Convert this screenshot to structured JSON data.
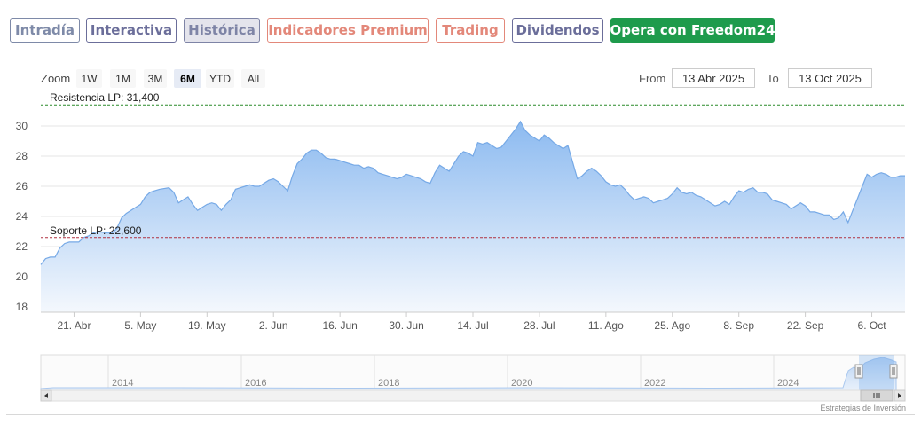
{
  "tabs": [
    {
      "label": "Intradía",
      "color": "#7e8aa8"
    },
    {
      "label": "Interactiva",
      "color": "#6b6e9a"
    },
    {
      "label": "Histórica",
      "color": "#7e84a6",
      "active": true
    },
    {
      "label": "Indicadores Premium",
      "color": "#e3887a"
    },
    {
      "label": "Trading",
      "color": "#e3887a"
    },
    {
      "label": "Dividendos",
      "color": "#6b6e9a"
    },
    {
      "label": "Opera con Freedom24",
      "color": "#1e9b4c",
      "cta": true
    }
  ],
  "range_selector": {
    "zoom_label": "Zoom",
    "buttons": [
      "1W",
      "1M",
      "3M",
      "6M",
      "YTD",
      "All"
    ],
    "active": "6M",
    "from_label": "From",
    "from_value": "13 Abr 2025",
    "to_label": "To",
    "to_value": "13 Oct 2025"
  },
  "chart_data": {
    "type": "area",
    "title": "",
    "xlabel": "",
    "ylabel": "",
    "ylim": [
      18,
      31.5
    ],
    "yticks": [
      18,
      20,
      22,
      24,
      26,
      28,
      30
    ],
    "grid": true,
    "x_start": "2025-04-14",
    "x_end": "2025-10-13",
    "xticks": [
      {
        "label": "21. Abr",
        "date": "2025-04-21"
      },
      {
        "label": "5. May",
        "date": "2025-05-05"
      },
      {
        "label": "19. May",
        "date": "2025-05-19"
      },
      {
        "label": "2. Jun",
        "date": "2025-06-02"
      },
      {
        "label": "16. Jun",
        "date": "2025-06-16"
      },
      {
        "label": "30. Jun",
        "date": "2025-06-30"
      },
      {
        "label": "14. Jul",
        "date": "2025-07-14"
      },
      {
        "label": "28. Jul",
        "date": "2025-07-28"
      },
      {
        "label": "11. Ago",
        "date": "2025-08-11"
      },
      {
        "label": "25. Ago",
        "date": "2025-08-25"
      },
      {
        "label": "8. Sep",
        "date": "2025-09-08"
      },
      {
        "label": "22. Sep",
        "date": "2025-09-22"
      },
      {
        "label": "6. Oct",
        "date": "2025-10-06"
      }
    ],
    "series": [
      {
        "values": [
          [
            "2025-04-14",
            20.8
          ],
          [
            "2025-04-15",
            21.2
          ],
          [
            "2025-04-16",
            21.3
          ],
          [
            "2025-04-17",
            21.3
          ],
          [
            "2025-04-18",
            21.9
          ],
          [
            "2025-04-19",
            22.2
          ],
          [
            "2025-04-20",
            22.3
          ],
          [
            "2025-04-21",
            22.3
          ],
          [
            "2025-04-22",
            22.3
          ],
          [
            "2025-04-23",
            22.6
          ],
          [
            "2025-04-24",
            22.7
          ],
          [
            "2025-04-25",
            22.9
          ],
          [
            "2025-04-26",
            23.0
          ],
          [
            "2025-04-28",
            22.9
          ],
          [
            "2025-04-29",
            22.9
          ],
          [
            "2025-04-30",
            23.2
          ],
          [
            "2025-05-01",
            23.9
          ],
          [
            "2025-05-02",
            24.2
          ],
          [
            "2025-05-04",
            24.6
          ],
          [
            "2025-05-05",
            24.8
          ],
          [
            "2025-05-06",
            25.3
          ],
          [
            "2025-05-07",
            25.6
          ],
          [
            "2025-05-08",
            25.7
          ],
          [
            "2025-05-09",
            25.8
          ],
          [
            "2025-05-11",
            25.9
          ],
          [
            "2025-05-12",
            25.6
          ],
          [
            "2025-05-13",
            24.9
          ],
          [
            "2025-05-14",
            25.1
          ],
          [
            "2025-05-15",
            25.3
          ],
          [
            "2025-05-16",
            24.8
          ],
          [
            "2025-05-17",
            24.4
          ],
          [
            "2025-05-18",
            24.6
          ],
          [
            "2025-05-19",
            24.8
          ],
          [
            "2025-05-20",
            24.9
          ],
          [
            "2025-05-21",
            24.8
          ],
          [
            "2025-05-22",
            24.4
          ],
          [
            "2025-05-23",
            24.8
          ],
          [
            "2025-05-24",
            25.1
          ],
          [
            "2025-05-25",
            25.8
          ],
          [
            "2025-05-26",
            25.9
          ],
          [
            "2025-05-27",
            26.0
          ],
          [
            "2025-05-28",
            26.1
          ],
          [
            "2025-05-29",
            26.0
          ],
          [
            "2025-05-30",
            26.0
          ],
          [
            "2025-06-01",
            26.4
          ],
          [
            "2025-06-02",
            26.5
          ],
          [
            "2025-06-03",
            26.3
          ],
          [
            "2025-06-04",
            26.0
          ],
          [
            "2025-06-05",
            25.7
          ],
          [
            "2025-06-06",
            26.7
          ],
          [
            "2025-06-07",
            27.5
          ],
          [
            "2025-06-08",
            27.8
          ],
          [
            "2025-06-09",
            28.2
          ],
          [
            "2025-06-10",
            28.4
          ],
          [
            "2025-06-11",
            28.4
          ],
          [
            "2025-06-12",
            28.2
          ],
          [
            "2025-06-13",
            27.9
          ],
          [
            "2025-06-14",
            27.8
          ],
          [
            "2025-06-15",
            27.8
          ],
          [
            "2025-06-16",
            27.7
          ],
          [
            "2025-06-17",
            27.6
          ],
          [
            "2025-06-18",
            27.5
          ],
          [
            "2025-06-19",
            27.4
          ],
          [
            "2025-06-20",
            27.4
          ],
          [
            "2025-06-21",
            27.2
          ],
          [
            "2025-06-22",
            27.3
          ],
          [
            "2025-06-23",
            27.2
          ],
          [
            "2025-06-24",
            26.9
          ],
          [
            "2025-06-25",
            26.8
          ],
          [
            "2025-06-26",
            26.7
          ],
          [
            "2025-06-27",
            26.6
          ],
          [
            "2025-06-28",
            26.5
          ],
          [
            "2025-06-29",
            26.6
          ],
          [
            "2025-06-30",
            26.8
          ],
          [
            "2025-07-01",
            26.7
          ],
          [
            "2025-07-02",
            26.6
          ],
          [
            "2025-07-03",
            26.5
          ],
          [
            "2025-07-04",
            26.3
          ],
          [
            "2025-07-05",
            26.2
          ],
          [
            "2025-07-06",
            26.9
          ],
          [
            "2025-07-07",
            27.4
          ],
          [
            "2025-07-08",
            27.2
          ],
          [
            "2025-07-09",
            27.0
          ],
          [
            "2025-07-10",
            27.5
          ],
          [
            "2025-07-11",
            28.0
          ],
          [
            "2025-07-12",
            28.3
          ],
          [
            "2025-07-13",
            28.2
          ],
          [
            "2025-07-14",
            28.0
          ],
          [
            "2025-07-15",
            28.9
          ],
          [
            "2025-07-16",
            28.8
          ],
          [
            "2025-07-17",
            28.9
          ],
          [
            "2025-07-18",
            28.7
          ],
          [
            "2025-07-19",
            28.5
          ],
          [
            "2025-07-20",
            28.6
          ],
          [
            "2025-07-21",
            29.0
          ],
          [
            "2025-07-22",
            29.4
          ],
          [
            "2025-07-23",
            29.8
          ],
          [
            "2025-07-24",
            30.3
          ],
          [
            "2025-07-25",
            29.7
          ],
          [
            "2025-07-26",
            29.4
          ],
          [
            "2025-07-27",
            29.2
          ],
          [
            "2025-07-28",
            29.0
          ],
          [
            "2025-07-29",
            29.4
          ],
          [
            "2025-07-30",
            29.2
          ],
          [
            "2025-07-31",
            28.9
          ],
          [
            "2025-08-01",
            28.7
          ],
          [
            "2025-08-02",
            28.5
          ],
          [
            "2025-08-03",
            28.7
          ],
          [
            "2025-08-04",
            27.6
          ],
          [
            "2025-08-05",
            26.5
          ],
          [
            "2025-08-06",
            26.7
          ],
          [
            "2025-08-07",
            27.0
          ],
          [
            "2025-08-08",
            27.2
          ],
          [
            "2025-08-09",
            27.0
          ],
          [
            "2025-08-10",
            26.7
          ],
          [
            "2025-08-11",
            26.3
          ],
          [
            "2025-08-12",
            26.1
          ],
          [
            "2025-08-13",
            26.0
          ],
          [
            "2025-08-14",
            26.1
          ],
          [
            "2025-08-15",
            25.8
          ],
          [
            "2025-08-16",
            25.4
          ],
          [
            "2025-08-17",
            25.1
          ],
          [
            "2025-08-18",
            25.2
          ],
          [
            "2025-08-19",
            25.3
          ],
          [
            "2025-08-20",
            25.2
          ],
          [
            "2025-08-21",
            24.9
          ],
          [
            "2025-08-22",
            25.0
          ],
          [
            "2025-08-23",
            25.1
          ],
          [
            "2025-08-24",
            25.2
          ],
          [
            "2025-08-25",
            25.5
          ],
          [
            "2025-08-26",
            25.9
          ],
          [
            "2025-08-27",
            25.6
          ],
          [
            "2025-08-28",
            25.5
          ],
          [
            "2025-08-29",
            25.6
          ],
          [
            "2025-08-30",
            25.4
          ],
          [
            "2025-08-31",
            25.3
          ],
          [
            "2025-09-01",
            25.1
          ],
          [
            "2025-09-02",
            24.9
          ],
          [
            "2025-09-03",
            24.7
          ],
          [
            "2025-09-04",
            24.8
          ],
          [
            "2025-09-05",
            25.0
          ],
          [
            "2025-09-06",
            24.8
          ],
          [
            "2025-09-07",
            25.3
          ],
          [
            "2025-09-08",
            25.7
          ],
          [
            "2025-09-09",
            25.6
          ],
          [
            "2025-09-10",
            25.8
          ],
          [
            "2025-09-11",
            25.9
          ],
          [
            "2025-09-12",
            25.6
          ],
          [
            "2025-09-13",
            25.6
          ],
          [
            "2025-09-14",
            25.5
          ],
          [
            "2025-09-15",
            25.1
          ],
          [
            "2025-09-16",
            25.0
          ],
          [
            "2025-09-17",
            24.9
          ],
          [
            "2025-09-18",
            24.8
          ],
          [
            "2025-09-19",
            24.5
          ],
          [
            "2025-09-20",
            24.7
          ],
          [
            "2025-09-21",
            24.9
          ],
          [
            "2025-09-22",
            24.7
          ],
          [
            "2025-09-23",
            24.3
          ],
          [
            "2025-09-24",
            24.3
          ],
          [
            "2025-09-25",
            24.2
          ],
          [
            "2025-09-26",
            24.1
          ],
          [
            "2025-09-27",
            24.1
          ],
          [
            "2025-09-28",
            23.8
          ],
          [
            "2025-09-29",
            23.9
          ],
          [
            "2025-09-30",
            24.3
          ],
          [
            "2025-10-01",
            23.6
          ],
          [
            "2025-10-02",
            24.4
          ],
          [
            "2025-10-03",
            25.2
          ],
          [
            "2025-10-04",
            26.0
          ],
          [
            "2025-10-05",
            26.8
          ],
          [
            "2025-10-06",
            26.6
          ],
          [
            "2025-10-07",
            26.8
          ],
          [
            "2025-10-08",
            26.9
          ],
          [
            "2025-10-09",
            26.8
          ],
          [
            "2025-10-10",
            26.6
          ],
          [
            "2025-10-11",
            26.6
          ],
          [
            "2025-10-12",
            26.7
          ],
          [
            "2025-10-13",
            26.7
          ]
        ]
      }
    ],
    "annotations": [
      {
        "label": "Resistencia LP: 31,400",
        "value": 31.4,
        "color": "#2a8a2a"
      },
      {
        "label": "Soporte LP: 22,600",
        "value": 22.6,
        "color": "#b03040"
      }
    ],
    "colors": {
      "line": "#76a9e6",
      "fill_top": "#8cbaf0",
      "fill_bottom": "#f4f8fd",
      "grid": "#e6e6e6"
    }
  },
  "navigator": {
    "years": [
      "2014",
      "2016",
      "2018",
      "2020",
      "2022",
      "2024"
    ],
    "selected_range": "6M"
  },
  "credits": "Estrategias de Inversión"
}
